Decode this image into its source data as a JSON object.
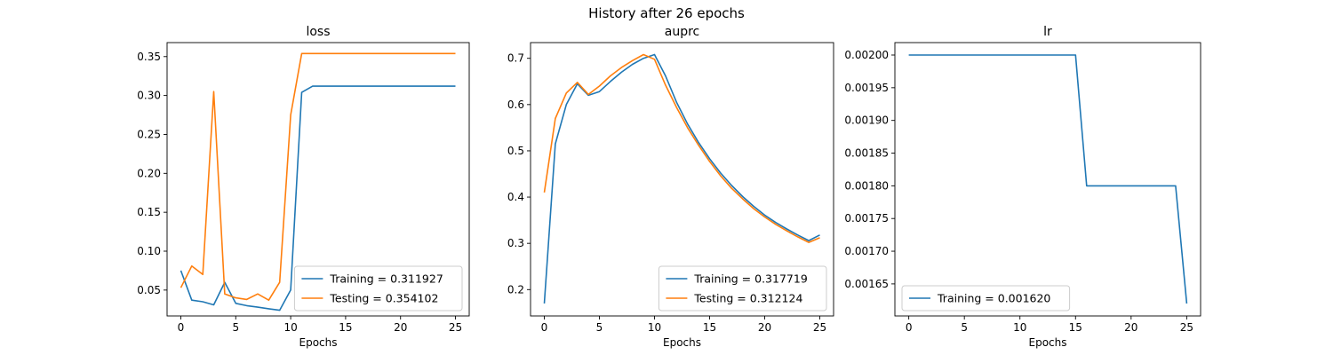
{
  "suptitle": "History after 26 epochs",
  "colors": {
    "training": "#1f77b4",
    "testing": "#ff7f0e",
    "axis": "#000000"
  },
  "chart_data": [
    {
      "type": "line",
      "title": "loss",
      "xlabel": "Epochs",
      "ylabel": "",
      "xlim": [
        -1.25,
        26.25
      ],
      "ylim": [
        0.01675,
        0.368
      ],
      "xticks": [
        0,
        5,
        10,
        15,
        20,
        25
      ],
      "yticks": [
        0.05,
        0.1,
        0.15,
        0.2,
        0.25,
        0.3,
        0.35
      ],
      "ytick_labels": [
        "0.05",
        "0.10",
        "0.15",
        "0.20",
        "0.25",
        "0.30",
        "0.35"
      ],
      "legend_loc": "lower-right",
      "x": [
        0,
        1,
        2,
        3,
        4,
        5,
        6,
        7,
        8,
        9,
        10,
        11,
        12,
        13,
        14,
        15,
        16,
        17,
        18,
        19,
        20,
        21,
        22,
        23,
        24,
        25
      ],
      "series": [
        {
          "name": "Training = 0.311927",
          "color": "#1f77b4",
          "values": [
            0.075,
            0.037,
            0.035,
            0.031,
            0.06,
            0.033,
            0.03,
            0.028,
            0.026,
            0.024,
            0.05,
            0.304,
            0.312,
            0.312,
            0.312,
            0.312,
            0.312,
            0.312,
            0.312,
            0.312,
            0.312,
            0.312,
            0.312,
            0.312,
            0.312,
            0.312
          ]
        },
        {
          "name": "Testing = 0.354102",
          "color": "#ff7f0e",
          "values": [
            0.053,
            0.081,
            0.07,
            0.305,
            0.045,
            0.04,
            0.038,
            0.045,
            0.037,
            0.06,
            0.275,
            0.354,
            0.354,
            0.354,
            0.354,
            0.354,
            0.354,
            0.354,
            0.354,
            0.354,
            0.354,
            0.354,
            0.354,
            0.354,
            0.354,
            0.354
          ]
        }
      ]
    },
    {
      "type": "line",
      "title": "auprc",
      "xlabel": "Epochs",
      "ylabel": "",
      "xlim": [
        -1.25,
        26.25
      ],
      "ylim": [
        0.143,
        0.734
      ],
      "xticks": [
        0,
        5,
        10,
        15,
        20,
        25
      ],
      "yticks": [
        0.2,
        0.3,
        0.4,
        0.5,
        0.6,
        0.7
      ],
      "ytick_labels": [
        "0.2",
        "0.3",
        "0.4",
        "0.5",
        "0.6",
        "0.7"
      ],
      "legend_loc": "lower-right",
      "x": [
        0,
        1,
        2,
        3,
        4,
        5,
        6,
        7,
        8,
        9,
        10,
        11,
        12,
        13,
        14,
        15,
        16,
        17,
        18,
        19,
        20,
        21,
        22,
        23,
        24,
        25
      ],
      "series": [
        {
          "name": "Training = 0.317719",
          "color": "#1f77b4",
          "values": [
            0.17,
            0.515,
            0.6,
            0.645,
            0.62,
            0.628,
            0.65,
            0.67,
            0.687,
            0.7,
            0.708,
            0.662,
            0.605,
            0.558,
            0.518,
            0.483,
            0.452,
            0.425,
            0.401,
            0.38,
            0.361,
            0.345,
            0.331,
            0.318,
            0.306,
            0.318
          ]
        },
        {
          "name": "Testing = 0.312124",
          "color": "#ff7f0e",
          "values": [
            0.41,
            0.57,
            0.625,
            0.648,
            0.622,
            0.64,
            0.662,
            0.68,
            0.695,
            0.708,
            0.698,
            0.642,
            0.594,
            0.55,
            0.512,
            0.477,
            0.446,
            0.419,
            0.396,
            0.375,
            0.357,
            0.341,
            0.327,
            0.314,
            0.302,
            0.312
          ]
        }
      ]
    },
    {
      "type": "line",
      "title": "lr",
      "xlabel": "Epochs",
      "ylabel": "",
      "xlim": [
        -1.25,
        26.25
      ],
      "ylim": [
        0.001601,
        0.002019
      ],
      "xticks": [
        0,
        5,
        10,
        15,
        20,
        25
      ],
      "yticks": [
        0.00165,
        0.0017,
        0.00175,
        0.0018,
        0.00185,
        0.0019,
        0.00195,
        0.002
      ],
      "ytick_labels": [
        "0.00165",
        "0.00170",
        "0.00175",
        "0.00180",
        "0.00185",
        "0.00190",
        "0.00195",
        "0.00200"
      ],
      "legend_loc": "lower-left",
      "x": [
        0,
        1,
        2,
        3,
        4,
        5,
        6,
        7,
        8,
        9,
        10,
        11,
        12,
        13,
        14,
        15,
        16,
        17,
        18,
        19,
        20,
        21,
        22,
        23,
        24,
        25
      ],
      "series": [
        {
          "name": "Training = 0.001620",
          "color": "#1f77b4",
          "values": [
            0.002,
            0.002,
            0.002,
            0.002,
            0.002,
            0.002,
            0.002,
            0.002,
            0.002,
            0.002,
            0.002,
            0.002,
            0.002,
            0.002,
            0.002,
            0.002,
            0.0018,
            0.0018,
            0.0018,
            0.0018,
            0.0018,
            0.0018,
            0.0018,
            0.0018,
            0.0018,
            0.00162
          ]
        }
      ]
    }
  ]
}
